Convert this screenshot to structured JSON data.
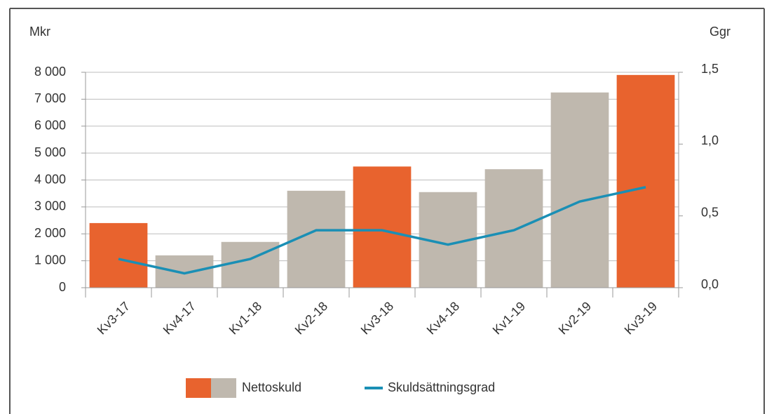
{
  "chart_data": {
    "type": "bar",
    "y_label": "Mkr",
    "y2_label": "Ggr",
    "categories": [
      "Kv3-17",
      "Kv4-17",
      "Kv1-18",
      "Kv2-18",
      "Kv3-18",
      "Kv4-18",
      "Kv1-19",
      "Kv2-19",
      "Kv3-19"
    ],
    "series": [
      {
        "name": "Nettoskuld",
        "type": "bar",
        "colors": [
          "#e8632e",
          "#bfb8ae",
          "#bfb8ae",
          "#bfb8ae",
          "#e8632e",
          "#bfb8ae",
          "#bfb8ae",
          "#bfb8ae",
          "#e8632e"
        ],
        "values": [
          2400,
          1200,
          1700,
          3600,
          4500,
          3550,
          4400,
          7250,
          7900
        ]
      },
      {
        "name": "Skuldsättningsgrad",
        "type": "line",
        "axis": "y2",
        "color": "#1a8fb5",
        "values": [
          0.2,
          0.1,
          0.2,
          0.4,
          0.4,
          0.3,
          0.4,
          0.6,
          0.7
        ]
      }
    ],
    "ylim": [
      0,
      8000
    ],
    "yticks": [
      0,
      {
        "value": 1000,
        "label": "1 000"
      },
      {
        "value": 2000,
        "label": "2 000"
      },
      {
        "value": 3000,
        "label": "3 000"
      },
      {
        "value": 4000,
        "label": "4 000"
      },
      {
        "value": 5000,
        "label": "5 000"
      },
      {
        "value": 6000,
        "label": "6 000"
      },
      {
        "value": 7000,
        "label": "7 000"
      },
      {
        "value": 8000,
        "label": "8 000"
      }
    ],
    "y2lim": [
      0,
      1.5
    ],
    "y2ticks": [
      {
        "value": 0,
        "label": "0,0"
      },
      {
        "value": 0.5,
        "label": "0,5"
      },
      {
        "value": 1,
        "label": "1,0"
      },
      {
        "value": 1.5,
        "label": "1,5"
      }
    ],
    "grid": true,
    "legend": "bottom"
  }
}
